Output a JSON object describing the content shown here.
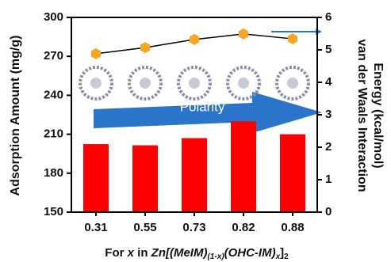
{
  "chart_data": {
    "type": "bar",
    "y_label": "Adsorption Amount (mg/g)",
    "y2_label": [
      "van der Waals Interaction",
      "Energy (kcal/mol)"
    ],
    "x_label": [
      "For ",
      "x",
      " in ",
      "Zn[(MeIM)",
      "(1-x)",
      "(OHC-IM)",
      "x",
      "]",
      "2"
    ],
    "annotation": "Polarity",
    "categories": [
      "0.31",
      "0.55",
      "0.73",
      "0.82",
      "0.88"
    ],
    "series": [
      {
        "type": "bar",
        "color": "#ff0000",
        "values": [
          202.4,
          201.5,
          207,
          220,
          210
        ]
      },
      {
        "type": "line",
        "axis": "y2",
        "color": "#f5a623",
        "values": [
          4.88,
          5.07,
          5.32,
          5.49,
          5.34
        ]
      }
    ],
    "ylim": [
      150,
      300
    ],
    "yticks": [
      150,
      180,
      210,
      240,
      270,
      300
    ],
    "y2lim": [
      0,
      6
    ],
    "y2ticks": [
      0,
      1,
      2,
      3,
      4,
      5,
      6
    ]
  }
}
